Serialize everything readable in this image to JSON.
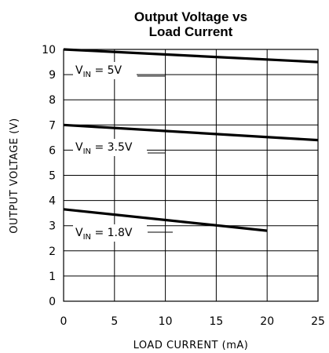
{
  "chart_data": {
    "type": "line",
    "title": [
      "Output Voltage vs",
      "Load Current"
    ],
    "xlabel": "LOAD CURRENT (mA)",
    "ylabel": "OUTPUT VOLTAGE (V)",
    "xlim": [
      0,
      25
    ],
    "ylim": [
      0,
      10
    ],
    "xticks": [
      "0",
      "5",
      "10",
      "15",
      "20",
      "25"
    ],
    "yticks": [
      "0",
      "1",
      "2",
      "3",
      "4",
      "5",
      "6",
      "7",
      "8",
      "9",
      "10"
    ],
    "grid": true,
    "series": [
      {
        "label_main": "V",
        "label_sub": "IN",
        "label_rest": " = 5V",
        "x": [
          0,
          25
        ],
        "y": [
          10.0,
          9.5
        ]
      },
      {
        "label_main": "V",
        "label_sub": "IN",
        "label_rest": " = 3.5V",
        "x": [
          0,
          25
        ],
        "y": [
          7.0,
          6.4
        ]
      },
      {
        "label_main": "V",
        "label_sub": "IN",
        "label_rest": " = 1.8V",
        "x": [
          0,
          20
        ],
        "y": [
          3.65,
          2.8
        ]
      }
    ]
  }
}
